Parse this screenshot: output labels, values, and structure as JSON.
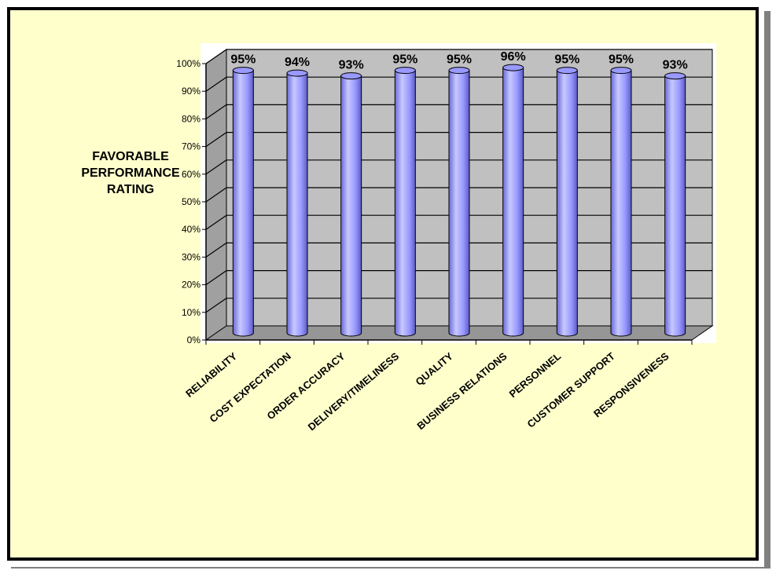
{
  "chart_data": {
    "type": "bar",
    "style": "3d-cylinder",
    "ylabel": "FAVORABLE\nPERFORMANCE\nRATING",
    "categories": [
      "RELIABILITY",
      "COST EXPECTATION",
      "ORDER ACCURACY",
      "DELIVERY/TIMELINESS",
      "QUALITY",
      "BUSINESS RELATIONS",
      "PERSONNEL",
      "CUSTOMER SUPPORT",
      "RESPONSIVENESS"
    ],
    "values": [
      95,
      94,
      93,
      95,
      95,
      96,
      95,
      95,
      93
    ],
    "data_labels": [
      "95%",
      "94%",
      "93%",
      "95%",
      "95%",
      "96%",
      "95%",
      "95%",
      "93%"
    ],
    "y_ticks": [
      "0%",
      "10%",
      "20%",
      "30%",
      "40%",
      "50%",
      "60%",
      "70%",
      "80%",
      "90%",
      "100%"
    ],
    "ylim": [
      0,
      100
    ],
    "grid": true,
    "legend": "none",
    "colors": {
      "bar": "#9999ff",
      "bar_dark": "#5555cc",
      "wall": "#c0c0c0",
      "wall_side": "#a0a0a0",
      "floor": "#969696",
      "background": "#ffffcc",
      "plot_area": "#ffffff"
    }
  }
}
